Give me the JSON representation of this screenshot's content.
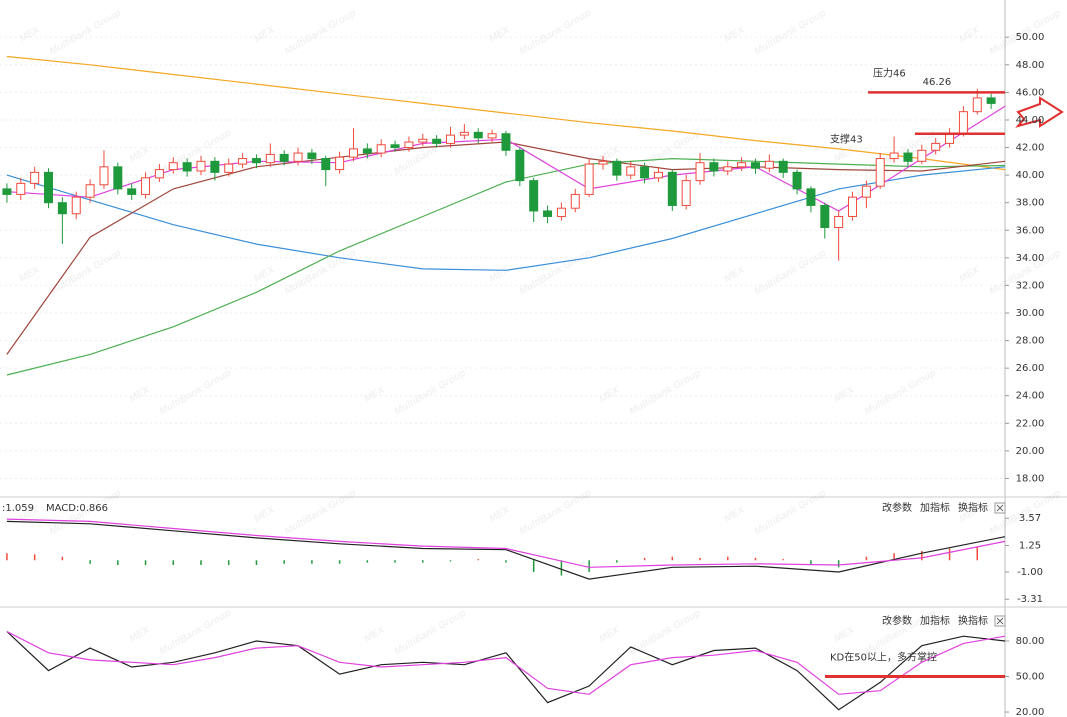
{
  "watermark": {
    "logo": "MEX",
    "text": "MultiBank Group"
  },
  "chart_data": [
    {
      "type": "candlestick",
      "xlim": [
        -0.5,
        72
      ],
      "ylim": [
        16.8,
        52.7
      ],
      "grid": true,
      "up_color": "#f04a3c",
      "down_color": "#1e9a3c",
      "yticks": [
        {
          "value": 50,
          "label": "50.00"
        },
        {
          "value": 48,
          "label": "48.00"
        },
        {
          "value": 46,
          "label": "46.00"
        },
        {
          "value": 44,
          "label": "44.00"
        },
        {
          "value": 42,
          "label": "42.00"
        },
        {
          "value": 40,
          "label": "40.00"
        },
        {
          "value": 38,
          "label": "38.00"
        },
        {
          "value": 36,
          "label": "36.00"
        },
        {
          "value": 34,
          "label": "34.00"
        },
        {
          "value": 32,
          "label": "32.00"
        },
        {
          "value": 30,
          "label": "30.00"
        },
        {
          "value": 28,
          "label": "28.00"
        },
        {
          "value": 26,
          "label": "26.00"
        },
        {
          "value": 24,
          "label": "24.00"
        },
        {
          "value": 22,
          "label": "22.00"
        },
        {
          "value": 20,
          "label": "20.00"
        },
        {
          "value": 18,
          "label": "18.00"
        }
      ],
      "ohlc": [
        [
          39.0,
          39.4,
          38.0,
          38.6
        ],
        [
          38.6,
          39.8,
          38.2,
          39.4
        ],
        [
          39.4,
          40.6,
          39.0,
          40.2
        ],
        [
          40.2,
          40.5,
          37.6,
          38.0
        ],
        [
          38.0,
          38.4,
          35.0,
          37.2
        ],
        [
          37.2,
          38.8,
          36.8,
          38.4
        ],
        [
          38.4,
          39.7,
          38.0,
          39.3
        ],
        [
          39.3,
          41.8,
          39.0,
          40.6
        ],
        [
          40.6,
          40.9,
          38.6,
          39.0
        ],
        [
          39.0,
          39.4,
          38.2,
          38.6
        ],
        [
          38.6,
          40.2,
          38.3,
          39.8
        ],
        [
          39.8,
          40.8,
          39.5,
          40.4
        ],
        [
          40.4,
          41.3,
          40.1,
          40.9
        ],
        [
          40.9,
          41.2,
          39.9,
          40.3
        ],
        [
          40.3,
          41.4,
          40.0,
          41.0
        ],
        [
          41.0,
          41.3,
          39.6,
          40.2
        ],
        [
          40.2,
          41.2,
          39.9,
          40.8
        ],
        [
          40.8,
          41.6,
          40.5,
          41.2
        ],
        [
          41.2,
          41.5,
          40.5,
          40.9
        ],
        [
          40.9,
          42.3,
          40.6,
          41.5
        ],
        [
          41.5,
          41.8,
          40.7,
          41.0
        ],
        [
          41.0,
          42.0,
          40.7,
          41.6
        ],
        [
          41.6,
          41.9,
          40.8,
          41.2
        ],
        [
          41.2,
          41.4,
          39.2,
          40.4
        ],
        [
          40.4,
          41.7,
          40.1,
          41.3
        ],
        [
          41.3,
          43.4,
          41.0,
          41.9
        ],
        [
          41.9,
          42.3,
          41.2,
          41.6
        ],
        [
          41.6,
          42.6,
          41.3,
          42.2
        ],
        [
          42.2,
          42.5,
          41.7,
          42.0
        ],
        [
          42.0,
          42.8,
          41.7,
          42.4
        ],
        [
          42.4,
          43.0,
          42.1,
          42.6
        ],
        [
          42.6,
          42.9,
          42.0,
          42.3
        ],
        [
          42.3,
          43.5,
          42.0,
          42.9
        ],
        [
          42.9,
          43.7,
          42.6,
          43.1
        ],
        [
          43.1,
          43.4,
          42.3,
          42.7
        ],
        [
          42.7,
          43.3,
          42.4,
          43.0
        ],
        [
          43.0,
          43.2,
          41.4,
          41.8
        ],
        [
          41.8,
          42.0,
          39.2,
          39.6
        ],
        [
          39.6,
          39.8,
          36.6,
          37.4
        ],
        [
          37.4,
          37.8,
          36.5,
          37.0
        ],
        [
          37.0,
          38.0,
          36.7,
          37.6
        ],
        [
          37.6,
          39.0,
          37.3,
          38.6
        ],
        [
          38.6,
          41.2,
          38.4,
          40.8
        ],
        [
          40.8,
          41.4,
          40.4,
          41.0
        ],
        [
          41.0,
          41.2,
          39.6,
          40.0
        ],
        [
          40.0,
          41.0,
          39.7,
          40.6
        ],
        [
          40.6,
          40.9,
          39.4,
          39.8
        ],
        [
          39.8,
          40.6,
          39.5,
          40.2
        ],
        [
          40.2,
          40.4,
          37.4,
          37.8
        ],
        [
          37.8,
          40.0,
          37.5,
          39.6
        ],
        [
          39.6,
          41.6,
          39.3,
          40.9
        ],
        [
          40.9,
          41.2,
          39.9,
          40.3
        ],
        [
          40.3,
          41.0,
          40.0,
          40.6
        ],
        [
          40.6,
          41.3,
          40.3,
          40.9
        ],
        [
          40.9,
          41.2,
          40.1,
          40.5
        ],
        [
          40.5,
          41.5,
          40.2,
          41.0
        ],
        [
          41.0,
          41.2,
          39.8,
          40.2
        ],
        [
          40.2,
          40.4,
          38.6,
          39.0
        ],
        [
          39.0,
          39.2,
          37.3,
          37.8
        ],
        [
          37.8,
          38.0,
          35.4,
          36.2
        ],
        [
          36.2,
          37.4,
          33.8,
          37.0
        ],
        [
          37.0,
          38.8,
          36.7,
          38.4
        ],
        [
          38.4,
          39.6,
          37.6,
          39.2
        ],
        [
          39.2,
          41.6,
          39.0,
          41.2
        ],
        [
          41.2,
          42.8,
          40.9,
          41.6
        ],
        [
          41.6,
          41.9,
          40.6,
          41.0
        ],
        [
          41.0,
          42.2,
          40.8,
          41.8
        ],
        [
          41.8,
          42.7,
          41.5,
          42.3
        ],
        [
          42.3,
          43.4,
          42.0,
          43.0
        ],
        [
          43.0,
          45.0,
          42.8,
          44.6
        ],
        [
          44.6,
          46.26,
          44.4,
          45.6
        ],
        [
          45.6,
          45.9,
          44.8,
          45.2
        ]
      ],
      "series": [
        {
          "color": "#f5a623",
          "x": [
            0,
            6,
            12,
            18,
            24,
            30,
            36,
            42,
            48,
            54,
            60,
            66,
            72
          ],
          "values": [
            48.6,
            48.0,
            47.3,
            46.6,
            45.9,
            45.2,
            44.5,
            43.8,
            43.2,
            42.5,
            41.9,
            41.2,
            40.4
          ]
        },
        {
          "color": "#3a8fd9",
          "x": [
            0,
            6,
            12,
            18,
            24,
            30,
            36,
            42,
            48,
            54,
            60,
            66,
            72
          ],
          "values": [
            40.0,
            38.2,
            36.4,
            35.0,
            34.0,
            33.2,
            33.1,
            34.0,
            35.4,
            37.2,
            39.0,
            40.0,
            40.6
          ]
        },
        {
          "color": "#4caf50",
          "x": [
            0,
            6,
            12,
            18,
            24,
            30,
            36,
            42,
            48,
            54,
            60,
            66,
            72
          ],
          "values": [
            25.5,
            27.0,
            29.0,
            31.5,
            34.5,
            37.0,
            39.5,
            40.8,
            41.2,
            41.0,
            40.8,
            40.6,
            40.7
          ]
        },
        {
          "color": "#a0463c",
          "x": [
            0,
            6,
            12,
            18,
            24,
            30,
            36,
            42,
            48,
            54,
            60,
            66,
            72
          ],
          "values": [
            27.0,
            35.5,
            39.0,
            40.6,
            41.3,
            42.0,
            42.4,
            41.2,
            40.4,
            40.6,
            40.4,
            40.3,
            41.0
          ]
        },
        {
          "color": "#e040e0",
          "x": [
            0,
            6,
            12,
            18,
            24,
            30,
            36,
            42,
            48,
            54,
            60,
            66,
            72
          ],
          "values": [
            38.8,
            38.4,
            40.4,
            41.0,
            40.9,
            42.3,
            42.6,
            39.0,
            40.0,
            40.6,
            37.4,
            41.2,
            45.0
          ]
        }
      ],
      "annotations": [
        {
          "text": "压力46",
          "value": 46
        },
        {
          "text": "支撑43",
          "value": 43
        }
      ],
      "high_label_index": 70
    },
    {
      "type": "macd",
      "xlim": [
        -0.5,
        72
      ],
      "ylim": [
        -3.8,
        4.1
      ],
      "header": {
        "dif": ":1.059",
        "macd": "MACD:0.866"
      },
      "buttons": [
        "改参数",
        "加指标",
        "换指标"
      ],
      "yticks": [
        3.57,
        1.25,
        {
          "value": -1,
          "label": "-1.00"
        },
        -3.31
      ],
      "up_color": "#f04a3c",
      "down_color": "#1e9a3c",
      "series": [
        {
          "color": "#222222",
          "x": [
            0,
            6,
            12,
            18,
            24,
            30,
            36,
            42,
            48,
            54,
            60,
            66,
            72
          ],
          "values": [
            3.3,
            3.1,
            2.5,
            1.9,
            1.4,
            1.0,
            0.9,
            -1.6,
            -0.6,
            -0.5,
            -1.0,
            0.6,
            2.0
          ]
        },
        {
          "color": "#e040e0",
          "x": [
            0,
            6,
            12,
            18,
            24,
            30,
            36,
            42,
            48,
            54,
            60,
            66,
            72
          ],
          "values": [
            3.5,
            3.3,
            2.7,
            2.1,
            1.6,
            1.2,
            1.0,
            -0.6,
            -0.4,
            -0.3,
            -0.4,
            0.2,
            1.6
          ]
        }
      ],
      "bars": {
        "x": [
          0,
          2,
          4,
          6,
          8,
          10,
          12,
          14,
          16,
          18,
          20,
          22,
          24,
          26,
          28,
          30,
          32,
          34,
          36,
          38,
          40,
          42,
          44,
          46,
          48,
          50,
          52,
          54,
          56,
          58,
          60,
          62,
          64,
          66,
          68,
          70
        ],
        "values": [
          0.6,
          0.5,
          0.3,
          -0.3,
          -0.4,
          -0.4,
          -0.4,
          -0.4,
          -0.4,
          -0.4,
          -0.3,
          -0.3,
          -0.3,
          -0.2,
          -0.2,
          -0.2,
          -0.1,
          0.1,
          -0.2,
          -1.0,
          -1.3,
          -1.0,
          -0.2,
          0.2,
          0.3,
          0.2,
          0.3,
          0.2,
          0.1,
          -0.4,
          -0.6,
          0.3,
          0.6,
          0.8,
          1.0,
          1.1
        ]
      }
    },
    {
      "type": "kd",
      "xlim": [
        -0.5,
        72
      ],
      "ylim": [
        15.8,
        93.5
      ],
      "buttons": [
        "改参数",
        "加指标",
        "换指标"
      ],
      "yticks": [
        {
          "value": 80,
          "label": "80.00"
        },
        {
          "value": 50,
          "label": "50.00"
        },
        {
          "value": 20,
          "label": "20.00"
        }
      ],
      "series": [
        {
          "color": "#222222",
          "x": [
            0,
            3,
            6,
            9,
            12,
            15,
            18,
            21,
            24,
            27,
            30,
            33,
            36,
            39,
            42,
            45,
            48,
            51,
            54,
            57,
            60,
            63,
            66,
            69,
            72
          ],
          "values": [
            88,
            55,
            74,
            58,
            62,
            70,
            80,
            76,
            52,
            60,
            62,
            60,
            70,
            28,
            42,
            75,
            60,
            72,
            74,
            55,
            22,
            45,
            76,
            84,
            80
          ]
        },
        {
          "color": "#e040e0",
          "x": [
            0,
            3,
            6,
            9,
            12,
            15,
            18,
            21,
            24,
            27,
            30,
            33,
            36,
            39,
            42,
            45,
            48,
            51,
            54,
            57,
            60,
            63,
            66,
            69,
            72
          ],
          "values": [
            88,
            70,
            64,
            62,
            60,
            66,
            74,
            76,
            62,
            58,
            60,
            62,
            66,
            40,
            35,
            60,
            66,
            68,
            72,
            62,
            35,
            38,
            62,
            78,
            84
          ]
        }
      ],
      "annotation": {
        "text": "KD在50以上，多方掌控",
        "value": 50
      }
    }
  ]
}
